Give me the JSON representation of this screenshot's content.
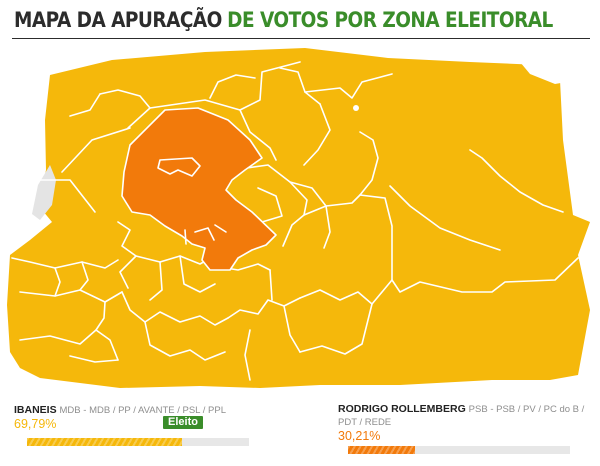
{
  "title": {
    "part1": "MAPA DA APURAÇÃO",
    "part2": "DE VOTOS POR ZONA ELEITORAL"
  },
  "colors": {
    "leader": "#f5b80b",
    "second": "#f27a0b",
    "elected": "#3a8d2a",
    "stroke": "#ffffff"
  },
  "candidates": [
    {
      "name": "IBANEIS",
      "parties": "MDB - MDB / PP / AVANTE / PSL / PPL",
      "percent": "69,79%",
      "share": 0.6979,
      "status": "Eleito"
    },
    {
      "name": "RODRIGO ROLLEMBERG",
      "parties": "PSB - PSB / PV / PC do B / PDT / REDE",
      "percent": "30,21%",
      "share": 0.3021
    }
  ]
}
